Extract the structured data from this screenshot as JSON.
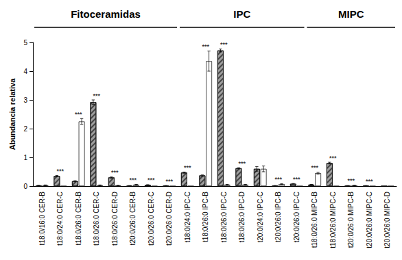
{
  "chart_data": {
    "type": "bar",
    "ylabel": "Abundancia relativa",
    "categories": [
      "t18:0/16:0 CER-B",
      "t18:0/24:0 CER-C",
      "t18:0/26:0 CER-B",
      "t18:0/26:0 CER-C",
      "t18:0/26:0 CER-D",
      "t20:0/26:0 CER-B",
      "t20:0/26:0 CER-C",
      "t20:0/26:0 CER-D",
      "t18:0/24:0 IPC-C",
      "t18:0/26:0 IPC-B",
      "t18:0/26:0 IPC-C",
      "t18:0/26:0 IPC-D",
      "t20:0/24:0 IPC-C",
      "t20:0/26:0 IPC-B",
      "t20:0/26:0 IPC-C",
      "t18:0/26:0 MIPC-B",
      "t18:0/26:0 MIPC-C",
      "t20:0/26:0 MIPC-B",
      "t20:0/26:0 MIPC-C",
      "t20:0/26:0 MIPC-D"
    ],
    "series": [
      {
        "color": "#9e9e9e",
        "values": [
          0.02,
          0.35,
          0.17,
          2.92,
          0.3,
          0.01,
          0.04,
          0.01,
          0.47,
          0.37,
          4.72,
          0.62,
          0.6,
          0.01,
          0.08,
          0.05,
          0.8,
          0.01,
          0.01,
          0
        ],
        "errors": [
          0.01,
          0.02,
          0.02,
          0.08,
          0.02,
          0.01,
          0.01,
          0.01,
          0.02,
          0.02,
          0.05,
          0.02,
          0.08,
          0.01,
          0.01,
          0.01,
          0.03,
          0.01,
          0.01,
          0
        ]
      },
      {
        "color": "#ffffff",
        "values": [
          0.03,
          0,
          2.25,
          0.03,
          0.02,
          0.05,
          0,
          0,
          0,
          4.35,
          0.05,
          0.05,
          0.6,
          0.07,
          0,
          0.45,
          0,
          0.02,
          0,
          0
        ],
        "errors": [
          0.01,
          0,
          0.1,
          0.01,
          0.01,
          0.01,
          0,
          0,
          0,
          0.35,
          0.01,
          0.01,
          0.1,
          0.01,
          0,
          0.03,
          0,
          0.01,
          0,
          0
        ]
      }
    ],
    "annotations": [
      null,
      "***",
      "***",
      "***",
      "***",
      "***",
      "***",
      "***",
      "***",
      "***",
      "***",
      "***",
      null,
      "***",
      "***",
      "***",
      "***",
      "***",
      "***",
      null
    ],
    "groups": [
      {
        "label": "Fitoceramidas",
        "from": "t18:0/16:0 CER-B",
        "to": "t20:0/26:0 CER-D"
      },
      {
        "label": "IPC",
        "from": "t18:0/24:0 IPC-C",
        "to": "t20:0/26:0 IPC-C"
      },
      {
        "label": "MIPC",
        "from": "t18:0/26:0 MIPC-B",
        "to": "t20:0/26:0 MIPC-D"
      }
    ],
    "ylim": [
      0,
      5
    ],
    "yticks": [
      0,
      1,
      2,
      3,
      4,
      5
    ],
    "grid": false
  }
}
